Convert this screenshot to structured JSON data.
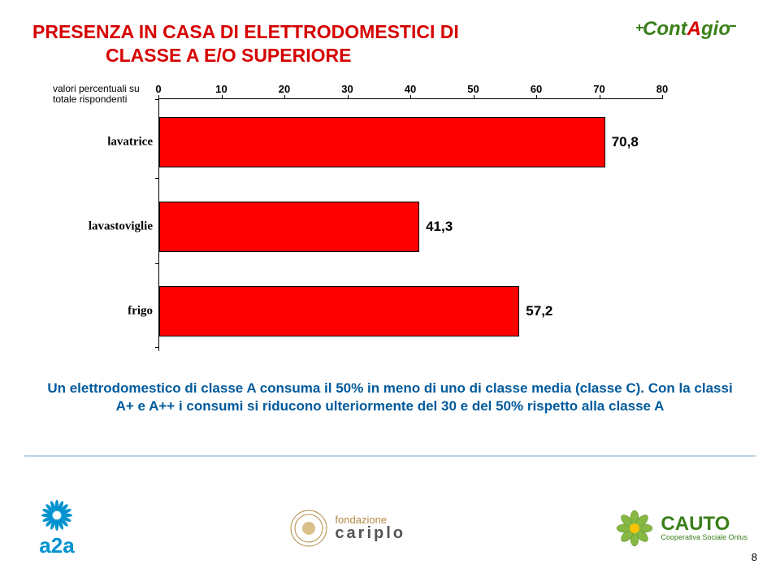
{
  "title": {
    "line1": "PRESENZA IN CASA DI ELETTRODOMESTICI DI",
    "line2": "CLASSE A E/O SUPERIORE",
    "color": "#d60000"
  },
  "subtitle_note": {
    "line1": "valori percentuali su",
    "line2": "totale rispondenti"
  },
  "chart": {
    "type": "bar",
    "x_axis": {
      "min": 0,
      "max": 80,
      "ticks": [
        0,
        10,
        20,
        30,
        40,
        50,
        60,
        70,
        80
      ]
    },
    "bar_color": "#ff0000",
    "bar_border": "#000000",
    "label_color": "#000000",
    "series": [
      {
        "category": "lavatrice",
        "value": 70.8,
        "value_label": "70,8"
      },
      {
        "category": "lavastoviglie",
        "value": 41.3,
        "value_label": "41,3"
      },
      {
        "category": "frigo",
        "value": 57.2,
        "value_label": "57,2"
      }
    ],
    "category_color": "#000000",
    "tick_color": "#000000"
  },
  "body_text": {
    "text": "Un elettrodomestico di classe A consuma il 50% in meno di uno di classe media (classe C). Con la classi A+ e A++ i consumi si riducono ulteriormente del 30 e del 50% rispetto alla classe A",
    "color": "#005a9c"
  },
  "logo_top": {
    "text_parts": [
      {
        "txt": "Cont",
        "color": "#3a7f1a"
      },
      {
        "txt": "A",
        "color": "#d60000"
      },
      {
        "txt": "gio",
        "color": "#3a7f1a"
      }
    ]
  },
  "footer_logos": {
    "a2a": {
      "label": "a2a",
      "color": "#0092d0"
    },
    "cariplo": {
      "label1": "fondazione",
      "label2": "cariplo",
      "color1": "#b38b46",
      "color2": "#555555"
    },
    "cauto": {
      "label": "CAUTO",
      "sub": "Cooperativa Sociale Onlus",
      "color": "#3a7f1a",
      "flower_green": "#86b843",
      "flower_yellow": "#f9c300"
    }
  },
  "page_number": "8"
}
